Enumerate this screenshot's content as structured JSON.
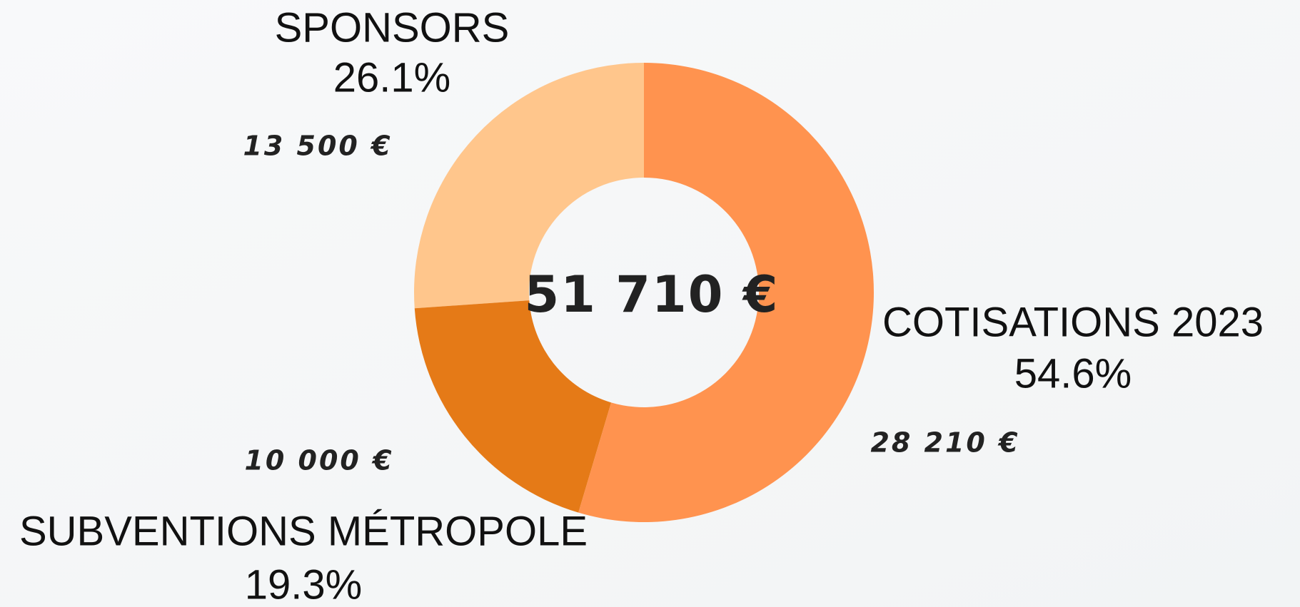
{
  "chart_data": {
    "type": "donut",
    "categories": [
      "COTISATIONS 2023",
      "SUBVENTIONS MÉTROPOLE",
      "SPONSORS"
    ],
    "values": [
      54.6,
      19.3,
      26.1
    ],
    "value_labels": [
      "54.6%",
      "19.3%",
      "26.1%"
    ],
    "amounts": [
      28210,
      10000,
      13500
    ],
    "amount_labels": [
      "28 210 €",
      "10 000 €",
      "13 500 €"
    ],
    "colors": [
      "#ff934f",
      "#e57a17",
      "#ffc68c"
    ],
    "center_label": "51 710 €"
  }
}
